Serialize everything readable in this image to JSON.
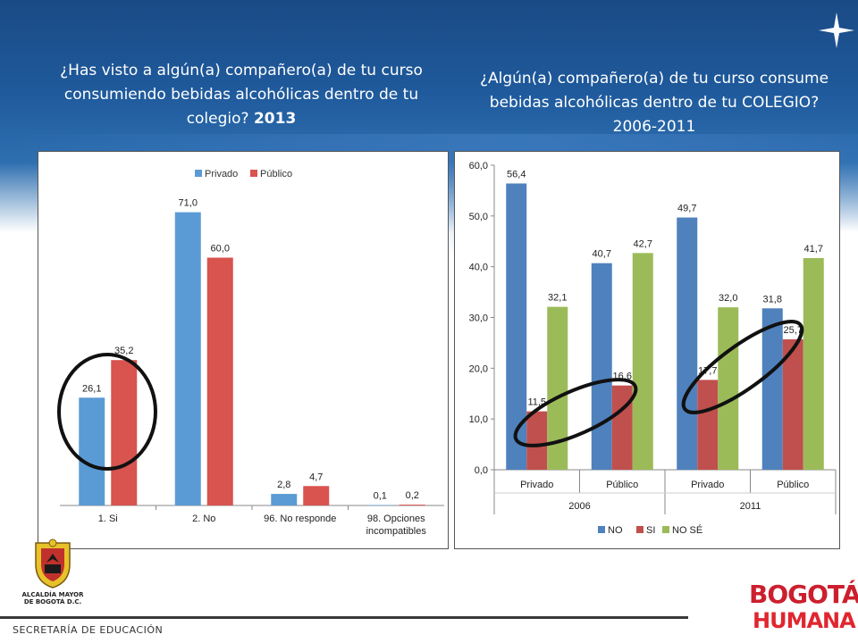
{
  "left_title": {
    "text": "¿Has visto a algún(a) compañero(a) de tu curso consumiendo bebidas alcohólicas dentro de tu colegio?",
    "year": "2013"
  },
  "right_title": {
    "text": "¿Algún(a) compañero(a) de tu curso consume bebidas alcohólicas dentro de tu COLEGIO? 2006-2011"
  },
  "footer": {
    "secretaria": "SECRETARÍA DE EDUCACIÓN",
    "alcaldia_line1": "ALCALDÍA MAYOR",
    "alcaldia_line2": "DE BOGOTÁ D.C.",
    "logo_top": "BOGOTÁ",
    "logo_bottom": "HUMANA"
  },
  "colors": {
    "privado": "#5b9bd5",
    "publico": "#d9534f",
    "no": "#4f81bd",
    "si": "#c0504d",
    "nose": "#9bbb59",
    "header": "#1f5a9c"
  },
  "chart_data": [
    {
      "type": "bar",
      "categories": [
        "1. Si",
        "2. No",
        "96. No responde",
        "98. Opciones incompatibles"
      ],
      "series": [
        {
          "name": "Privado",
          "values": [
            26.1,
            71.0,
            2.8,
            0.1
          ],
          "labels": [
            "26,1",
            "71,0",
            "2,8",
            "0,1"
          ]
        },
        {
          "name": "Público",
          "values": [
            35.2,
            60.0,
            4.7,
            0.2
          ],
          "labels": [
            "35,2",
            "60,0",
            "4,7",
            "0,2"
          ]
        }
      ],
      "ylim": [
        0,
        80
      ],
      "legend": "top-center",
      "grid": false,
      "annotation": "circle around 1. Si"
    },
    {
      "type": "bar",
      "categories": [
        "Privado",
        "Público",
        "Privado",
        "Público"
      ],
      "groups": [
        "2006",
        "2011"
      ],
      "series": [
        {
          "name": "NO",
          "values": [
            56.4,
            40.7,
            49.7,
            31.8
          ],
          "labels": [
            "56,4",
            "40,7",
            "49,7",
            "31,8"
          ]
        },
        {
          "name": "SI",
          "values": [
            11.5,
            16.6,
            17.7,
            25.7
          ],
          "labels": [
            "11,5",
            "16,6",
            "17,7",
            "25,7"
          ]
        },
        {
          "name": "NO SÉ",
          "values": [
            32.1,
            42.7,
            32.0,
            41.7
          ],
          "labels": [
            "32,1",
            "42,7",
            "32,0",
            "41,7"
          ]
        }
      ],
      "ylim": [
        0,
        60
      ],
      "yticks": [
        "0,0",
        "10,0",
        "20,0",
        "30,0",
        "40,0",
        "50,0",
        "60,0"
      ],
      "legend": "bottom-center",
      "grid": false,
      "annotation": "ellipses around SI bars"
    }
  ]
}
